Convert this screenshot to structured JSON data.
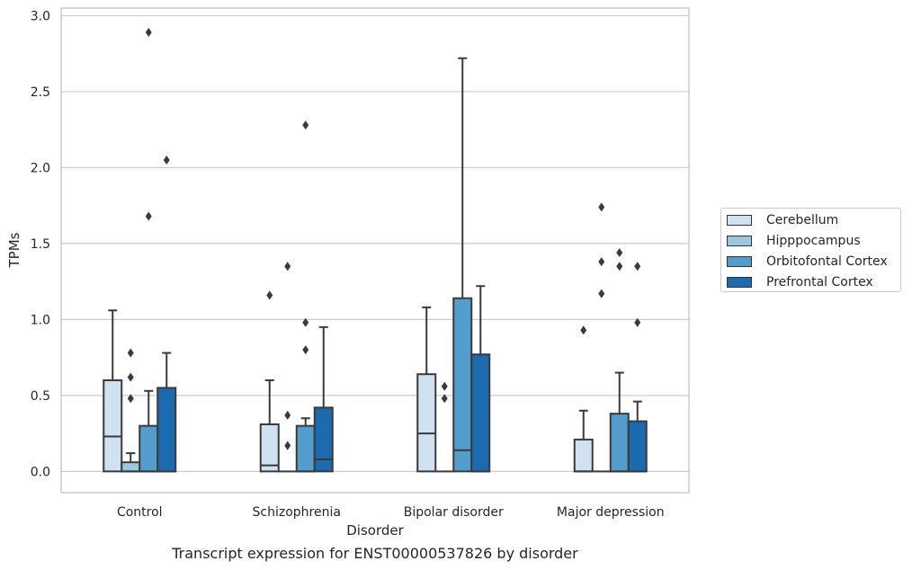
{
  "chart_data": {
    "type": "boxplot",
    "title": "",
    "xlabel": "Disorder",
    "ylabel": "TPMs",
    "ylim": [
      -0.14,
      3.05
    ],
    "yticks": [
      "0.0",
      "0.5",
      "1.0",
      "1.5",
      "2.0",
      "2.5",
      "3.0"
    ],
    "categories": [
      "Control",
      "Schizophrenia",
      "Bipolar disorder",
      "Major depression"
    ],
    "grid": "horizontal",
    "legend_position": "right",
    "series": [
      {
        "name": "Cerebellum",
        "color": "#d0e1f2",
        "boxes": [
          {
            "q1": 0.0,
            "median": 0.23,
            "q3": 0.6,
            "whisker_low": 0.0,
            "whisker_high": 1.06,
            "outliers": []
          },
          {
            "q1": 0.0,
            "median": 0.04,
            "q3": 0.31,
            "whisker_low": 0.0,
            "whisker_high": 0.6,
            "outliers": [
              1.16
            ]
          },
          {
            "q1": 0.0,
            "median": 0.25,
            "q3": 0.64,
            "whisker_low": 0.0,
            "whisker_high": 1.08,
            "outliers": []
          },
          {
            "q1": 0.0,
            "median": 0.0,
            "q3": 0.21,
            "whisker_low": 0.0,
            "whisker_high": 0.4,
            "outliers": [
              0.93
            ]
          }
        ]
      },
      {
        "name": "Hipppocampus",
        "color": "#9ac8e0",
        "boxes": [
          {
            "q1": 0.0,
            "median": 0.0,
            "q3": 0.06,
            "whisker_low": 0.0,
            "whisker_high": 0.12,
            "outliers": [
              0.48,
              0.62,
              0.78
            ]
          },
          {
            "q1": 0.0,
            "median": 0.0,
            "q3": 0.0,
            "whisker_low": 0.0,
            "whisker_high": 0.0,
            "outliers": [
              0.17,
              0.37,
              1.35
            ]
          },
          {
            "q1": 0.0,
            "median": 0.0,
            "q3": 0.0,
            "whisker_low": 0.0,
            "whisker_high": 0.0,
            "outliers": [
              0.48,
              0.56
            ]
          },
          {
            "q1": 0.0,
            "median": 0.0,
            "q3": 0.0,
            "whisker_low": 0.0,
            "whisker_high": 0.0,
            "outliers": [
              1.17,
              1.38,
              1.74
            ]
          }
        ]
      },
      {
        "name": "Orbitofontal Cortex",
        "color": "#529dcc",
        "boxes": [
          {
            "q1": 0.0,
            "median": 0.0,
            "q3": 0.3,
            "whisker_low": 0.0,
            "whisker_high": 0.53,
            "outliers": [
              1.68,
              2.89
            ]
          },
          {
            "q1": 0.0,
            "median": 0.0,
            "q3": 0.3,
            "whisker_low": 0.0,
            "whisker_high": 0.35,
            "outliers": [
              0.8,
              0.98,
              2.28
            ]
          },
          {
            "q1": 0.0,
            "median": 0.14,
            "q3": 1.14,
            "whisker_low": 0.0,
            "whisker_high": 2.72,
            "outliers": []
          },
          {
            "q1": 0.0,
            "median": 0.0,
            "q3": 0.38,
            "whisker_low": 0.0,
            "whisker_high": 0.65,
            "outliers": [
              1.35,
              1.44
            ]
          }
        ]
      },
      {
        "name": "Prefrontal Cortex",
        "color": "#1c6aaf",
        "boxes": [
          {
            "q1": 0.0,
            "median": 0.0,
            "q3": 0.55,
            "whisker_low": 0.0,
            "whisker_high": 0.78,
            "outliers": [
              2.05
            ]
          },
          {
            "q1": 0.0,
            "median": 0.08,
            "q3": 0.42,
            "whisker_low": 0.0,
            "whisker_high": 0.95,
            "outliers": []
          },
          {
            "q1": 0.0,
            "median": 0.0,
            "q3": 0.77,
            "whisker_low": 0.0,
            "whisker_high": 1.22,
            "outliers": []
          },
          {
            "q1": 0.0,
            "median": 0.0,
            "q3": 0.33,
            "whisker_low": 0.0,
            "whisker_high": 0.46,
            "outliers": [
              0.98,
              1.35
            ]
          }
        ]
      }
    ]
  },
  "caption": "Transcript expression for ENST00000537826 by disorder"
}
